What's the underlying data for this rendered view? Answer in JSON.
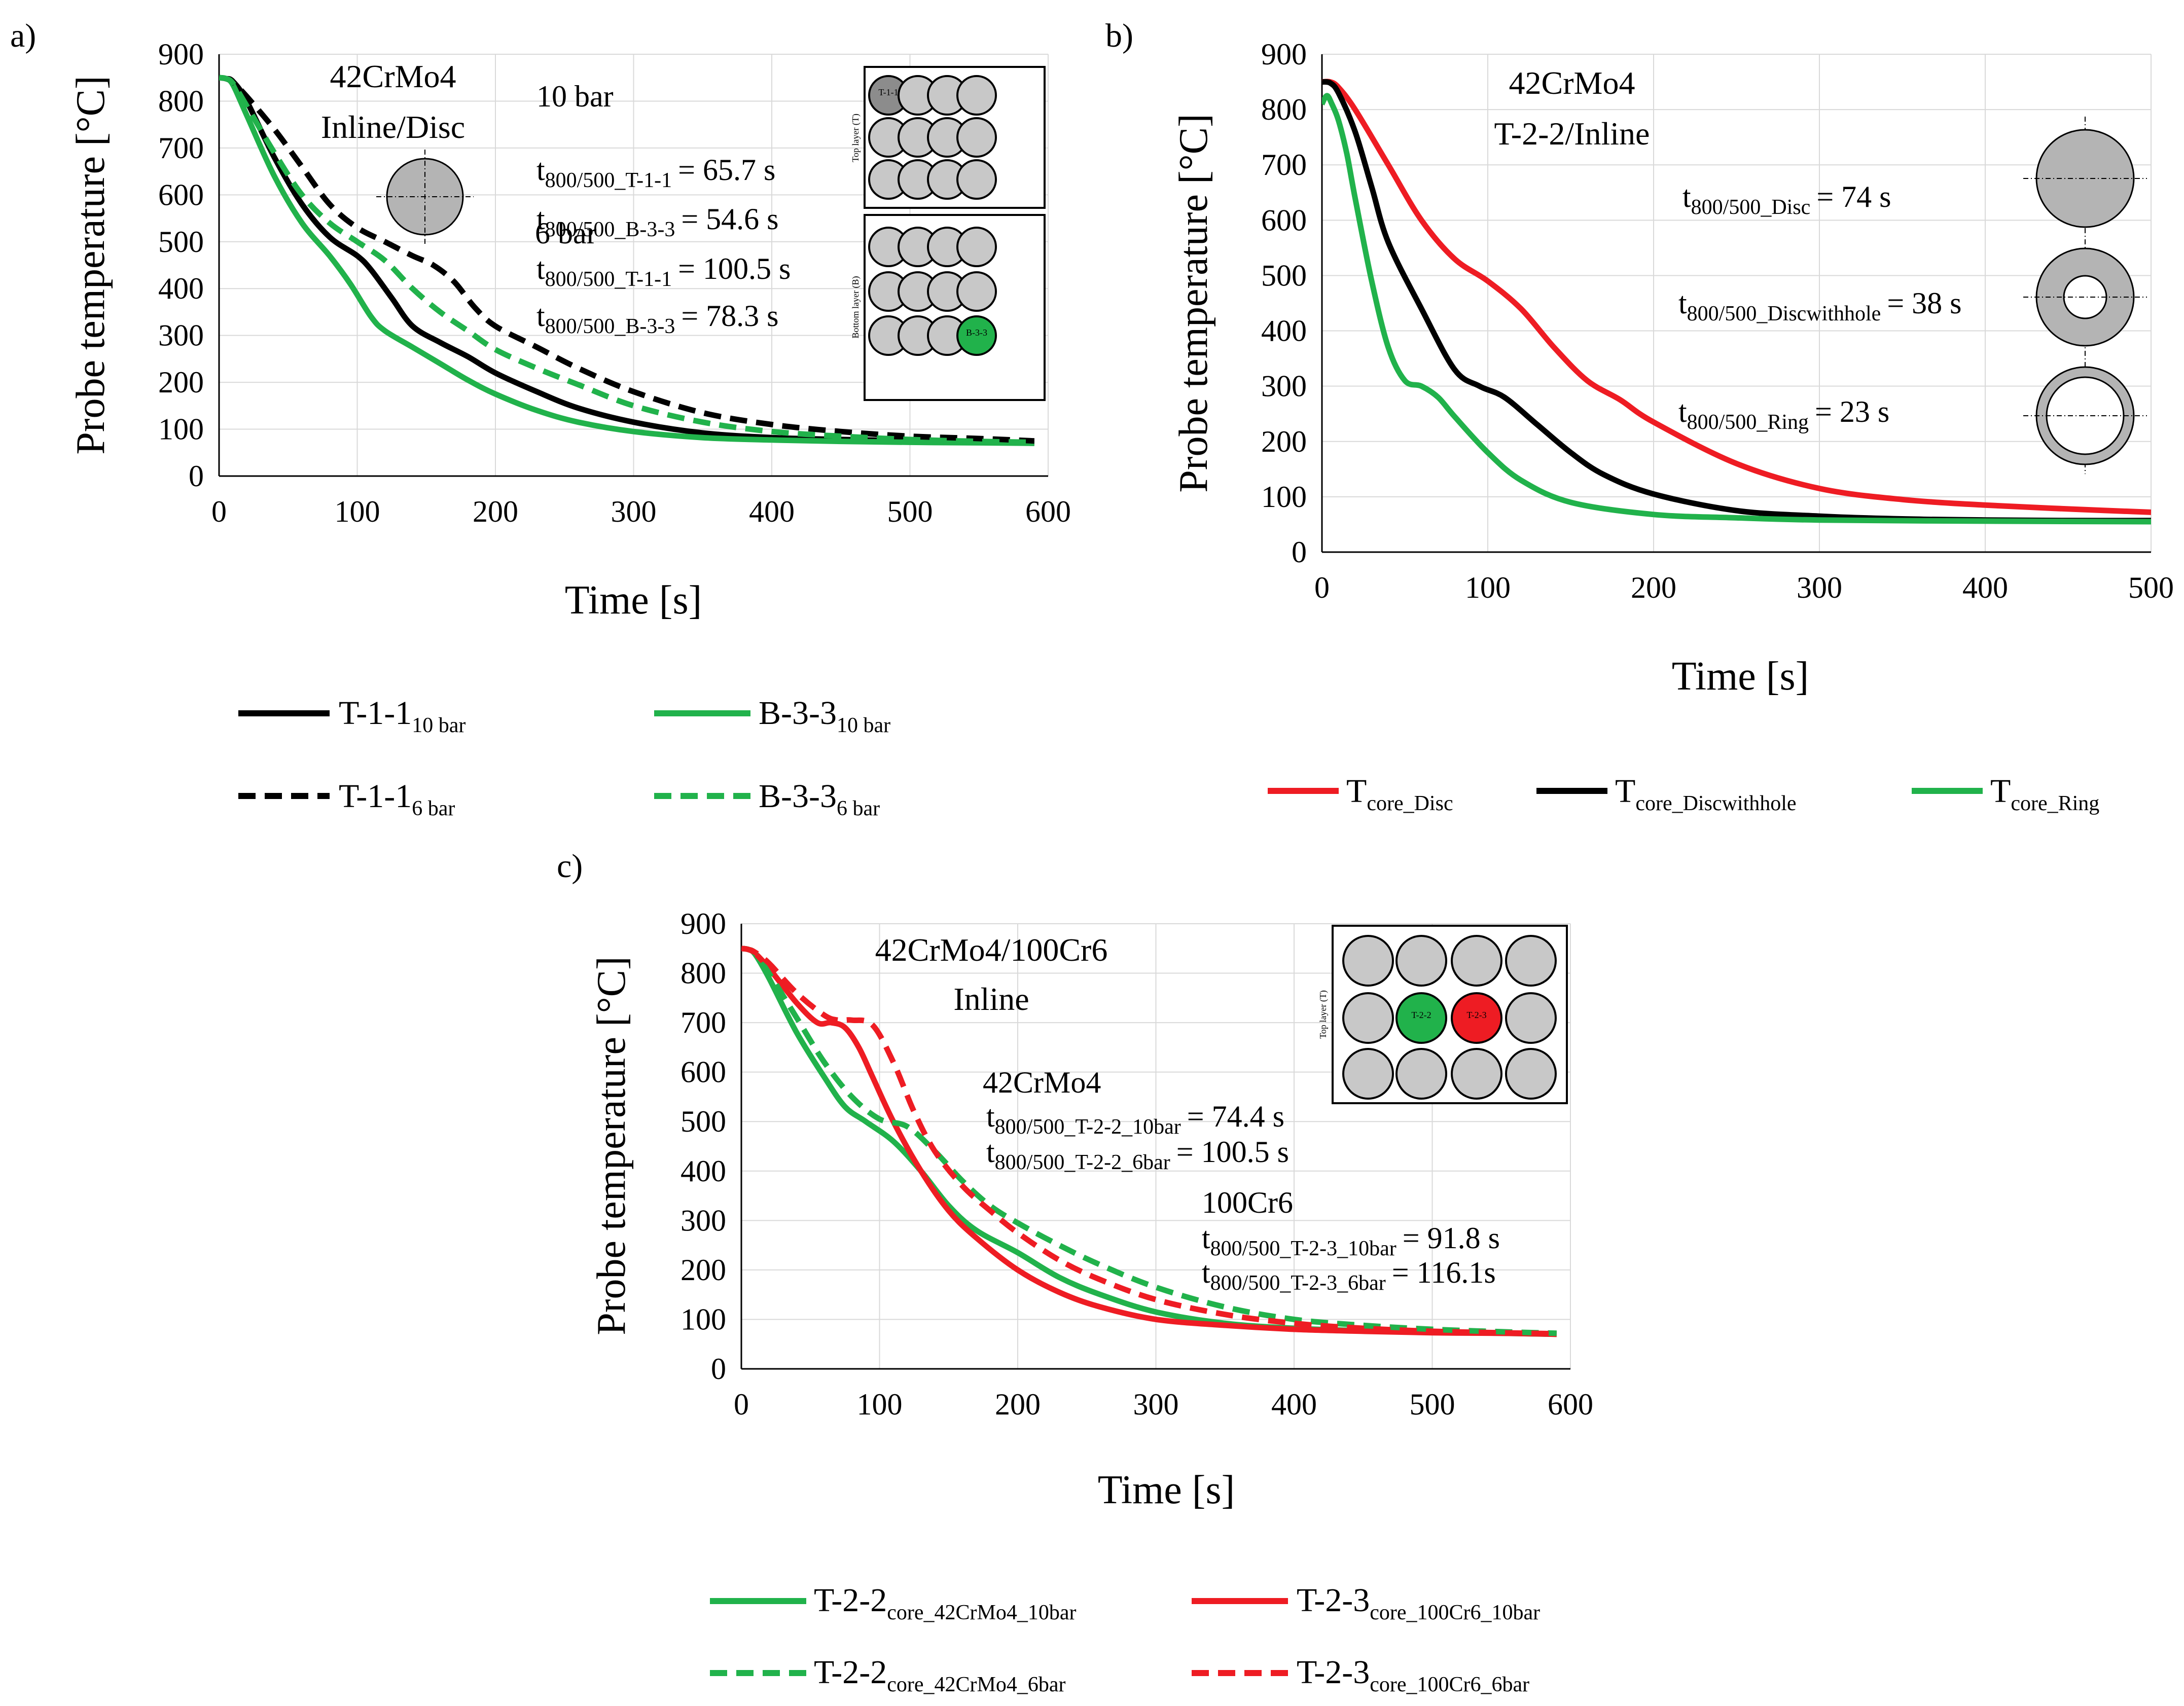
{
  "colors": {
    "green": "#21b24b",
    "black": "#000000",
    "red": "#ee1c23",
    "cell": "#c8c8c8",
    "cell_dark": "#8c8c8c"
  },
  "chart_data": [
    {
      "id": "a",
      "panel_label": "a)",
      "type": "line",
      "xlabel": "Time [s]",
      "ylabel": "Probe temperature [°C]",
      "xlim": [
        0,
        600
      ],
      "ylim": [
        0,
        900
      ],
      "xticks": [
        "0",
        "100",
        "200",
        "300",
        "400",
        "500",
        "600"
      ],
      "yticks": [
        "0",
        "100",
        "200",
        "300",
        "400",
        "500",
        "600",
        "700",
        "800",
        "900"
      ],
      "grid": true,
      "title_lines": [
        "42CrMo4",
        "Inline/Disc"
      ],
      "annotations": {
        "bar10_title": "10 bar",
        "t_label": "t",
        "sub_t11": "800/500_T-1-1",
        "sub_b33": "800/500_B-3-3",
        "val_10_t11": "= 65.7 s",
        "val_10_b33": "= 54.6 s",
        "bar6_title": "6 bar",
        "val_6_t11": "= 100.5 s",
        "val_6_b33": "= 78.3 s"
      },
      "inset": {
        "top_caption": "Top layer (T)",
        "bottom_caption": "Bottom layer (B)",
        "top_highlight": "T-1-1",
        "bottom_highlight": "B-3-3"
      },
      "series": [
        {
          "key": "T11_10",
          "name": "T-1-1",
          "sub": "10 bar",
          "color": "#000000",
          "dash": false,
          "x": [
            0,
            5,
            10,
            20,
            40,
            60,
            80,
            100,
            110,
            125,
            140,
            160,
            180,
            200,
            230,
            260,
            300,
            350,
            400,
            450,
            500,
            550,
            590
          ],
          "y": [
            850,
            848,
            842,
            800,
            680,
            580,
            510,
            470,
            440,
            380,
            320,
            285,
            255,
            220,
            180,
            145,
            115,
            92,
            82,
            78,
            75,
            73,
            70
          ]
        },
        {
          "key": "B33_10",
          "name": "B-3-3",
          "sub": "10 bar",
          "color": "#21b24b",
          "dash": false,
          "x": [
            0,
            5,
            10,
            20,
            40,
            60,
            80,
            95,
            110,
            120,
            140,
            160,
            180,
            200,
            230,
            260,
            300,
            350,
            400,
            450,
            500,
            550,
            590
          ],
          "y": [
            850,
            848,
            835,
            770,
            640,
            540,
            470,
            410,
            340,
            310,
            275,
            240,
            205,
            175,
            140,
            115,
            95,
            82,
            77,
            74,
            72,
            71,
            70
          ]
        },
        {
          "key": "T11_6",
          "name": "T-1-1",
          "sub": "6 bar",
          "color": "#000000",
          "dash": true,
          "x": [
            0,
            5,
            10,
            20,
            40,
            60,
            80,
            100,
            120,
            140,
            155,
            170,
            185,
            200,
            230,
            260,
            300,
            350,
            400,
            450,
            500,
            550,
            590
          ],
          "y": [
            850,
            848,
            840,
            810,
            740,
            660,
            580,
            530,
            500,
            470,
            450,
            415,
            360,
            320,
            275,
            230,
            180,
            135,
            110,
            95,
            85,
            80,
            75
          ]
        },
        {
          "key": "B33_6",
          "name": "B-3-3",
          "sub": "6 bar",
          "color": "#21b24b",
          "dash": true,
          "x": [
            0,
            5,
            10,
            20,
            40,
            60,
            80,
            100,
            120,
            140,
            160,
            180,
            200,
            230,
            260,
            300,
            350,
            400,
            450,
            500,
            550,
            590
          ],
          "y": [
            850,
            848,
            838,
            790,
            690,
            600,
            540,
            500,
            460,
            400,
            350,
            310,
            270,
            230,
            195,
            150,
            115,
            95,
            85,
            78,
            74,
            72
          ]
        }
      ]
    },
    {
      "id": "b",
      "panel_label": "b)",
      "type": "line",
      "xlabel": "Time [s]",
      "ylabel": "Probe temperature [°C]",
      "xlim": [
        0,
        500
      ],
      "ylim": [
        0,
        900
      ],
      "xticks": [
        "0",
        "100",
        "200",
        "300",
        "400",
        "500"
      ],
      "yticks": [
        "0",
        "100",
        "200",
        "300",
        "400",
        "500",
        "600",
        "700",
        "800",
        "900"
      ],
      "grid": true,
      "title_lines": [
        "42CrMo4",
        "T-2-2/Inline"
      ],
      "annotations": {
        "t_label": "t",
        "sub_disc": "800/500_Disc",
        "val_disc": "= 74 s",
        "sub_hole": "800/500_Discwithhole",
        "val_hole": "= 38 s",
        "sub_ring": "800/500_Ring",
        "val_ring": "= 23 s"
      },
      "series": [
        {
          "key": "Disc",
          "name": "T",
          "sub": "core_Disc",
          "color": "#ee1c23",
          "dash": false,
          "x": [
            0,
            5,
            10,
            20,
            40,
            60,
            80,
            100,
            120,
            140,
            160,
            180,
            200,
            250,
            300,
            350,
            400,
            450,
            500
          ],
          "y": [
            850,
            850,
            840,
            800,
            700,
            600,
            530,
            490,
            440,
            370,
            310,
            275,
            235,
            160,
            115,
            95,
            85,
            78,
            72
          ]
        },
        {
          "key": "Hole",
          "name": "T",
          "sub": "core_Discwithhole",
          "color": "#000000",
          "dash": false,
          "x": [
            0,
            5,
            10,
            20,
            30,
            40,
            60,
            80,
            95,
            110,
            130,
            150,
            170,
            200,
            250,
            300,
            350,
            400,
            450,
            500
          ],
          "y": [
            850,
            848,
            830,
            760,
            660,
            560,
            440,
            330,
            300,
            280,
            230,
            180,
            140,
            105,
            75,
            65,
            60,
            58,
            57,
            57
          ]
        },
        {
          "key": "Ring",
          "name": "T",
          "sub": "core_Ring",
          "color": "#21b24b",
          "dash": false,
          "x": [
            0,
            3,
            6,
            10,
            15,
            20,
            30,
            40,
            50,
            60,
            70,
            80,
            100,
            120,
            150,
            200,
            250,
            300,
            400,
            500
          ],
          "y": [
            810,
            825,
            810,
            780,
            720,
            640,
            490,
            370,
            310,
            300,
            280,
            245,
            180,
            130,
            90,
            68,
            62,
            58,
            56,
            55
          ]
        }
      ]
    },
    {
      "id": "c",
      "panel_label": "c)",
      "type": "line",
      "xlabel": "Time [s]",
      "ylabel": "Probe temperature [°C]",
      "xlim": [
        0,
        600
      ],
      "ylim": [
        0,
        900
      ],
      "xticks": [
        "0",
        "100",
        "200",
        "300",
        "400",
        "500",
        "600"
      ],
      "yticks": [
        "0",
        "100",
        "200",
        "300",
        "400",
        "500",
        "600",
        "700",
        "800",
        "900"
      ],
      "grid": true,
      "title_lines": [
        "42CrMo4/100Cr6",
        "Inline"
      ],
      "annotations": {
        "mat1": "42CrMo4",
        "t_label": "t",
        "sub_222_10": "800/500_T-2-2_10bar",
        "val_222_10": "= 74.4 s",
        "sub_222_6": "800/500_T-2-2_6bar",
        "val_222_6": "= 100.5 s",
        "mat2": "100Cr6",
        "sub_223_10": "800/500_T-2-3_10bar",
        "val_223_10": "= 91.8 s",
        "sub_223_6": "800/500_T-2-3_6bar",
        "val_223_6": "= 116.1s"
      },
      "inset": {
        "top_caption": "Top layer (T)",
        "highlight_green": "T-2-2",
        "highlight_red": "T-2-3"
      },
      "series": [
        {
          "key": "T222_10",
          "name": "T-2-2",
          "sub": "core_42CrMo4_10bar",
          "color": "#21b24b",
          "dash": false,
          "x": [
            0,
            5,
            10,
            20,
            40,
            60,
            75,
            90,
            110,
            130,
            150,
            170,
            200,
            230,
            260,
            300,
            350,
            400,
            450,
            500,
            550,
            590
          ],
          "y": [
            850,
            848,
            838,
            790,
            680,
            590,
            530,
            500,
            460,
            400,
            330,
            280,
            235,
            185,
            150,
            115,
            92,
            82,
            77,
            74,
            72,
            70
          ]
        },
        {
          "key": "T223_10",
          "name": "T-2-3",
          "sub": "core_100Cr6_10bar",
          "color": "#ee1c23",
          "dash": false,
          "x": [
            0,
            5,
            10,
            20,
            40,
            55,
            65,
            75,
            85,
            95,
            110,
            130,
            150,
            170,
            200,
            230,
            260,
            300,
            350,
            400,
            450,
            500,
            550,
            590
          ],
          "y": [
            850,
            848,
            840,
            810,
            740,
            700,
            700,
            690,
            650,
            590,
            500,
            400,
            320,
            265,
            200,
            155,
            125,
            100,
            88,
            80,
            76,
            73,
            72,
            70
          ]
        },
        {
          "key": "T222_6",
          "name": "T-2-2",
          "sub": "core_42CrMo4_6bar",
          "color": "#21b24b",
          "dash": true,
          "x": [
            0,
            5,
            10,
            20,
            40,
            60,
            80,
            100,
            120,
            140,
            160,
            180,
            200,
            230,
            260,
            300,
            350,
            400,
            450,
            500,
            550,
            590
          ],
          "y": [
            850,
            848,
            840,
            800,
            710,
            620,
            550,
            505,
            490,
            440,
            380,
            330,
            295,
            250,
            210,
            165,
            125,
            100,
            88,
            80,
            75,
            72
          ]
        },
        {
          "key": "T223_6",
          "name": "T-2-3",
          "sub": "core_100Cr6_6bar",
          "color": "#ee1c23",
          "dash": true,
          "x": [
            0,
            5,
            10,
            20,
            40,
            60,
            70,
            80,
            95,
            110,
            125,
            140,
            160,
            180,
            200,
            230,
            260,
            300,
            350,
            400,
            450,
            500,
            550,
            590
          ],
          "y": [
            850,
            848,
            842,
            820,
            760,
            715,
            705,
            705,
            695,
            620,
            520,
            440,
            370,
            320,
            275,
            220,
            180,
            140,
            110,
            92,
            82,
            76,
            73,
            71
          ]
        }
      ]
    }
  ]
}
